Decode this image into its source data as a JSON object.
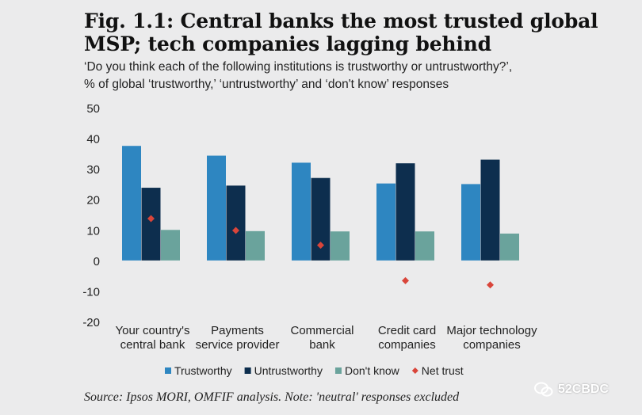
{
  "title_line1": "Fig. 1.1: Central banks the most trusted global",
  "title_line2": "MSP; tech companies lagging behind",
  "subtitle_line1": "‘Do you think each of the following institutions is trustworthy or untrustworthy?’,",
  "subtitle_line2": "% of global ‘trustworthy,’ ‘untrustworthy’ and ‘don't know’ responses",
  "source": "Source: Ipsos MORI, OMFIF analysis. Note: 'neutral' responses excluded",
  "watermark": "52CBDC",
  "chart_data": {
    "type": "bar",
    "categories": [
      [
        "Your country's",
        "central bank"
      ],
      [
        "Payments",
        "service provider"
      ],
      [
        "Commercial",
        "bank"
      ],
      [
        "Credit card",
        "companies"
      ],
      [
        "Major technology",
        "companies"
      ]
    ],
    "series": [
      {
        "name": "Trustworthy",
        "color": "#2e86c1",
        "marker": "bar",
        "values": [
          37.5,
          34.3,
          32.0,
          25.2,
          25.0
        ]
      },
      {
        "name": "Untrustworthy",
        "color": "#0d2e4e",
        "marker": "bar",
        "values": [
          23.8,
          24.5,
          27.0,
          31.8,
          33.0
        ]
      },
      {
        "name": "Don't know",
        "color": "#6aa39c",
        "marker": "bar",
        "values": [
          10.0,
          9.6,
          9.5,
          9.5,
          8.8
        ]
      },
      {
        "name": "Net trust",
        "color": "#d9453a",
        "marker": "diamond",
        "values": [
          13.7,
          9.8,
          5.0,
          -6.6,
          -8.0
        ]
      }
    ],
    "ylim": [
      -20,
      50
    ],
    "yticks": [
      50,
      40,
      30,
      20,
      10,
      0,
      -10,
      -20
    ],
    "legend_position": "bottom",
    "grid": false
  }
}
